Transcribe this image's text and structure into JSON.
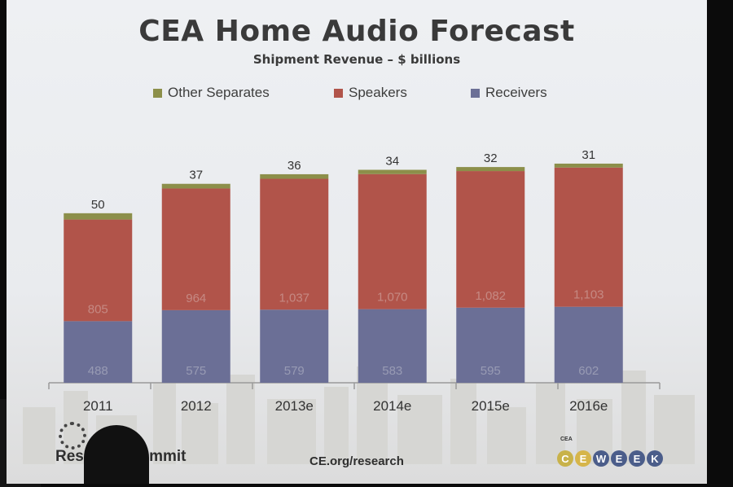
{
  "chart_data": {
    "type": "bar",
    "stacked": true,
    "title": "CEA Home Audio Forecast",
    "subtitle": "Shipment Revenue – $ billions",
    "categories": [
      "2011",
      "2012",
      "2013e",
      "2014e",
      "2015e",
      "2016e"
    ],
    "series": [
      {
        "name": "Receivers",
        "color": "#6b6f96",
        "values": [
          488,
          575,
          579,
          583,
          595,
          602
        ],
        "labels": [
          "488",
          "575",
          "579",
          "583",
          "595",
          "602"
        ]
      },
      {
        "name": "Speakers",
        "color": "#b1544a",
        "values": [
          805,
          964,
          1037,
          1070,
          1082,
          1103
        ],
        "labels": [
          "805",
          "964",
          "1,037",
          "1,070",
          "1,082",
          "1,103"
        ]
      },
      {
        "name": "Other Separates",
        "color": "#8c8f4a",
        "values": [
          50,
          37,
          36,
          34,
          32,
          31
        ],
        "labels": [
          "50",
          "37",
          "36",
          "34",
          "32",
          "31"
        ]
      }
    ],
    "legend_order": [
      "Other Separates",
      "Speakers",
      "Receivers"
    ],
    "legend_position": "top",
    "grid": false
  },
  "footer": {
    "brand": "Research Summit",
    "url": "CE.org/research",
    "cea_mark": "CEA",
    "ceweek_letters": [
      "C",
      "E",
      "W",
      "E",
      "E",
      "K"
    ]
  }
}
